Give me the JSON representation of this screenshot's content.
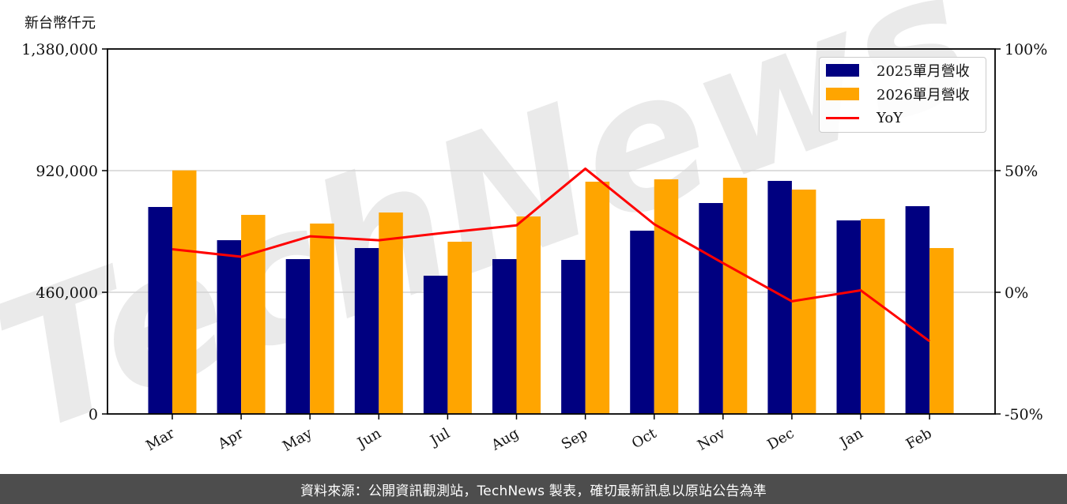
{
  "unit_label": "新台幣仟元",
  "footer": "資料來源：公開資訊觀測站，TechNews 製表，確切最新訊息以原站公告為準",
  "watermark": "TechNews",
  "colors": {
    "series_2025": "#000080",
    "series_2026": "#FFA500",
    "yoy": "#FF0000",
    "grid": "#d3d3d3",
    "footer_bg": "#4d4d4d"
  },
  "legend": {
    "items": [
      {
        "label": "2025單月營收",
        "type": "bar",
        "color": "#000080"
      },
      {
        "label": "2026單月營收",
        "type": "bar",
        "color": "#FFA500"
      },
      {
        "label": "YoY",
        "type": "line",
        "color": "#FF0000"
      }
    ]
  },
  "chart_data": {
    "type": "bar",
    "title": "",
    "xlabel": "",
    "ylabel": "新台幣仟元",
    "y2label": "",
    "categories": [
      "Mar",
      "Apr",
      "May",
      "Jun",
      "Jul",
      "Aug",
      "Sep",
      "Oct",
      "Nov",
      "Dec",
      "Jan",
      "Feb"
    ],
    "series": [
      {
        "name": "2025單月營收",
        "type": "bar",
        "axis": "left",
        "values": [
          782600,
          657000,
          585500,
          627300,
          522700,
          585500,
          582500,
          693000,
          797500,
          881200,
          731800,
          785600
        ]
      },
      {
        "name": "2026單月營收",
        "type": "bar",
        "axis": "left",
        "values": [
          920900,
          752700,
          719900,
          761700,
          651200,
          746700,
          878200,
          887100,
          893100,
          848300,
          737800,
          627300
        ]
      },
      {
        "name": "YoY",
        "type": "line",
        "axis": "right",
        "unit": "%",
        "values": [
          17.7,
          14.6,
          23.0,
          21.4,
          24.6,
          27.5,
          50.8,
          28.0,
          12.0,
          -3.7,
          0.8,
          -20.1
        ]
      }
    ],
    "ylim": [
      0,
      1380000
    ],
    "yticks": [
      0,
      460000,
      920000,
      1380000
    ],
    "ytick_labels": [
      "0",
      "460,000",
      "920,000",
      "1,380,000"
    ],
    "y2lim": [
      -50,
      100
    ],
    "y2ticks": [
      -50,
      0,
      50,
      100
    ],
    "y2tick_labels": [
      "-50%",
      "0%",
      "50%",
      "100%"
    ],
    "grid": "horizontal",
    "legend_position": "upper right"
  }
}
